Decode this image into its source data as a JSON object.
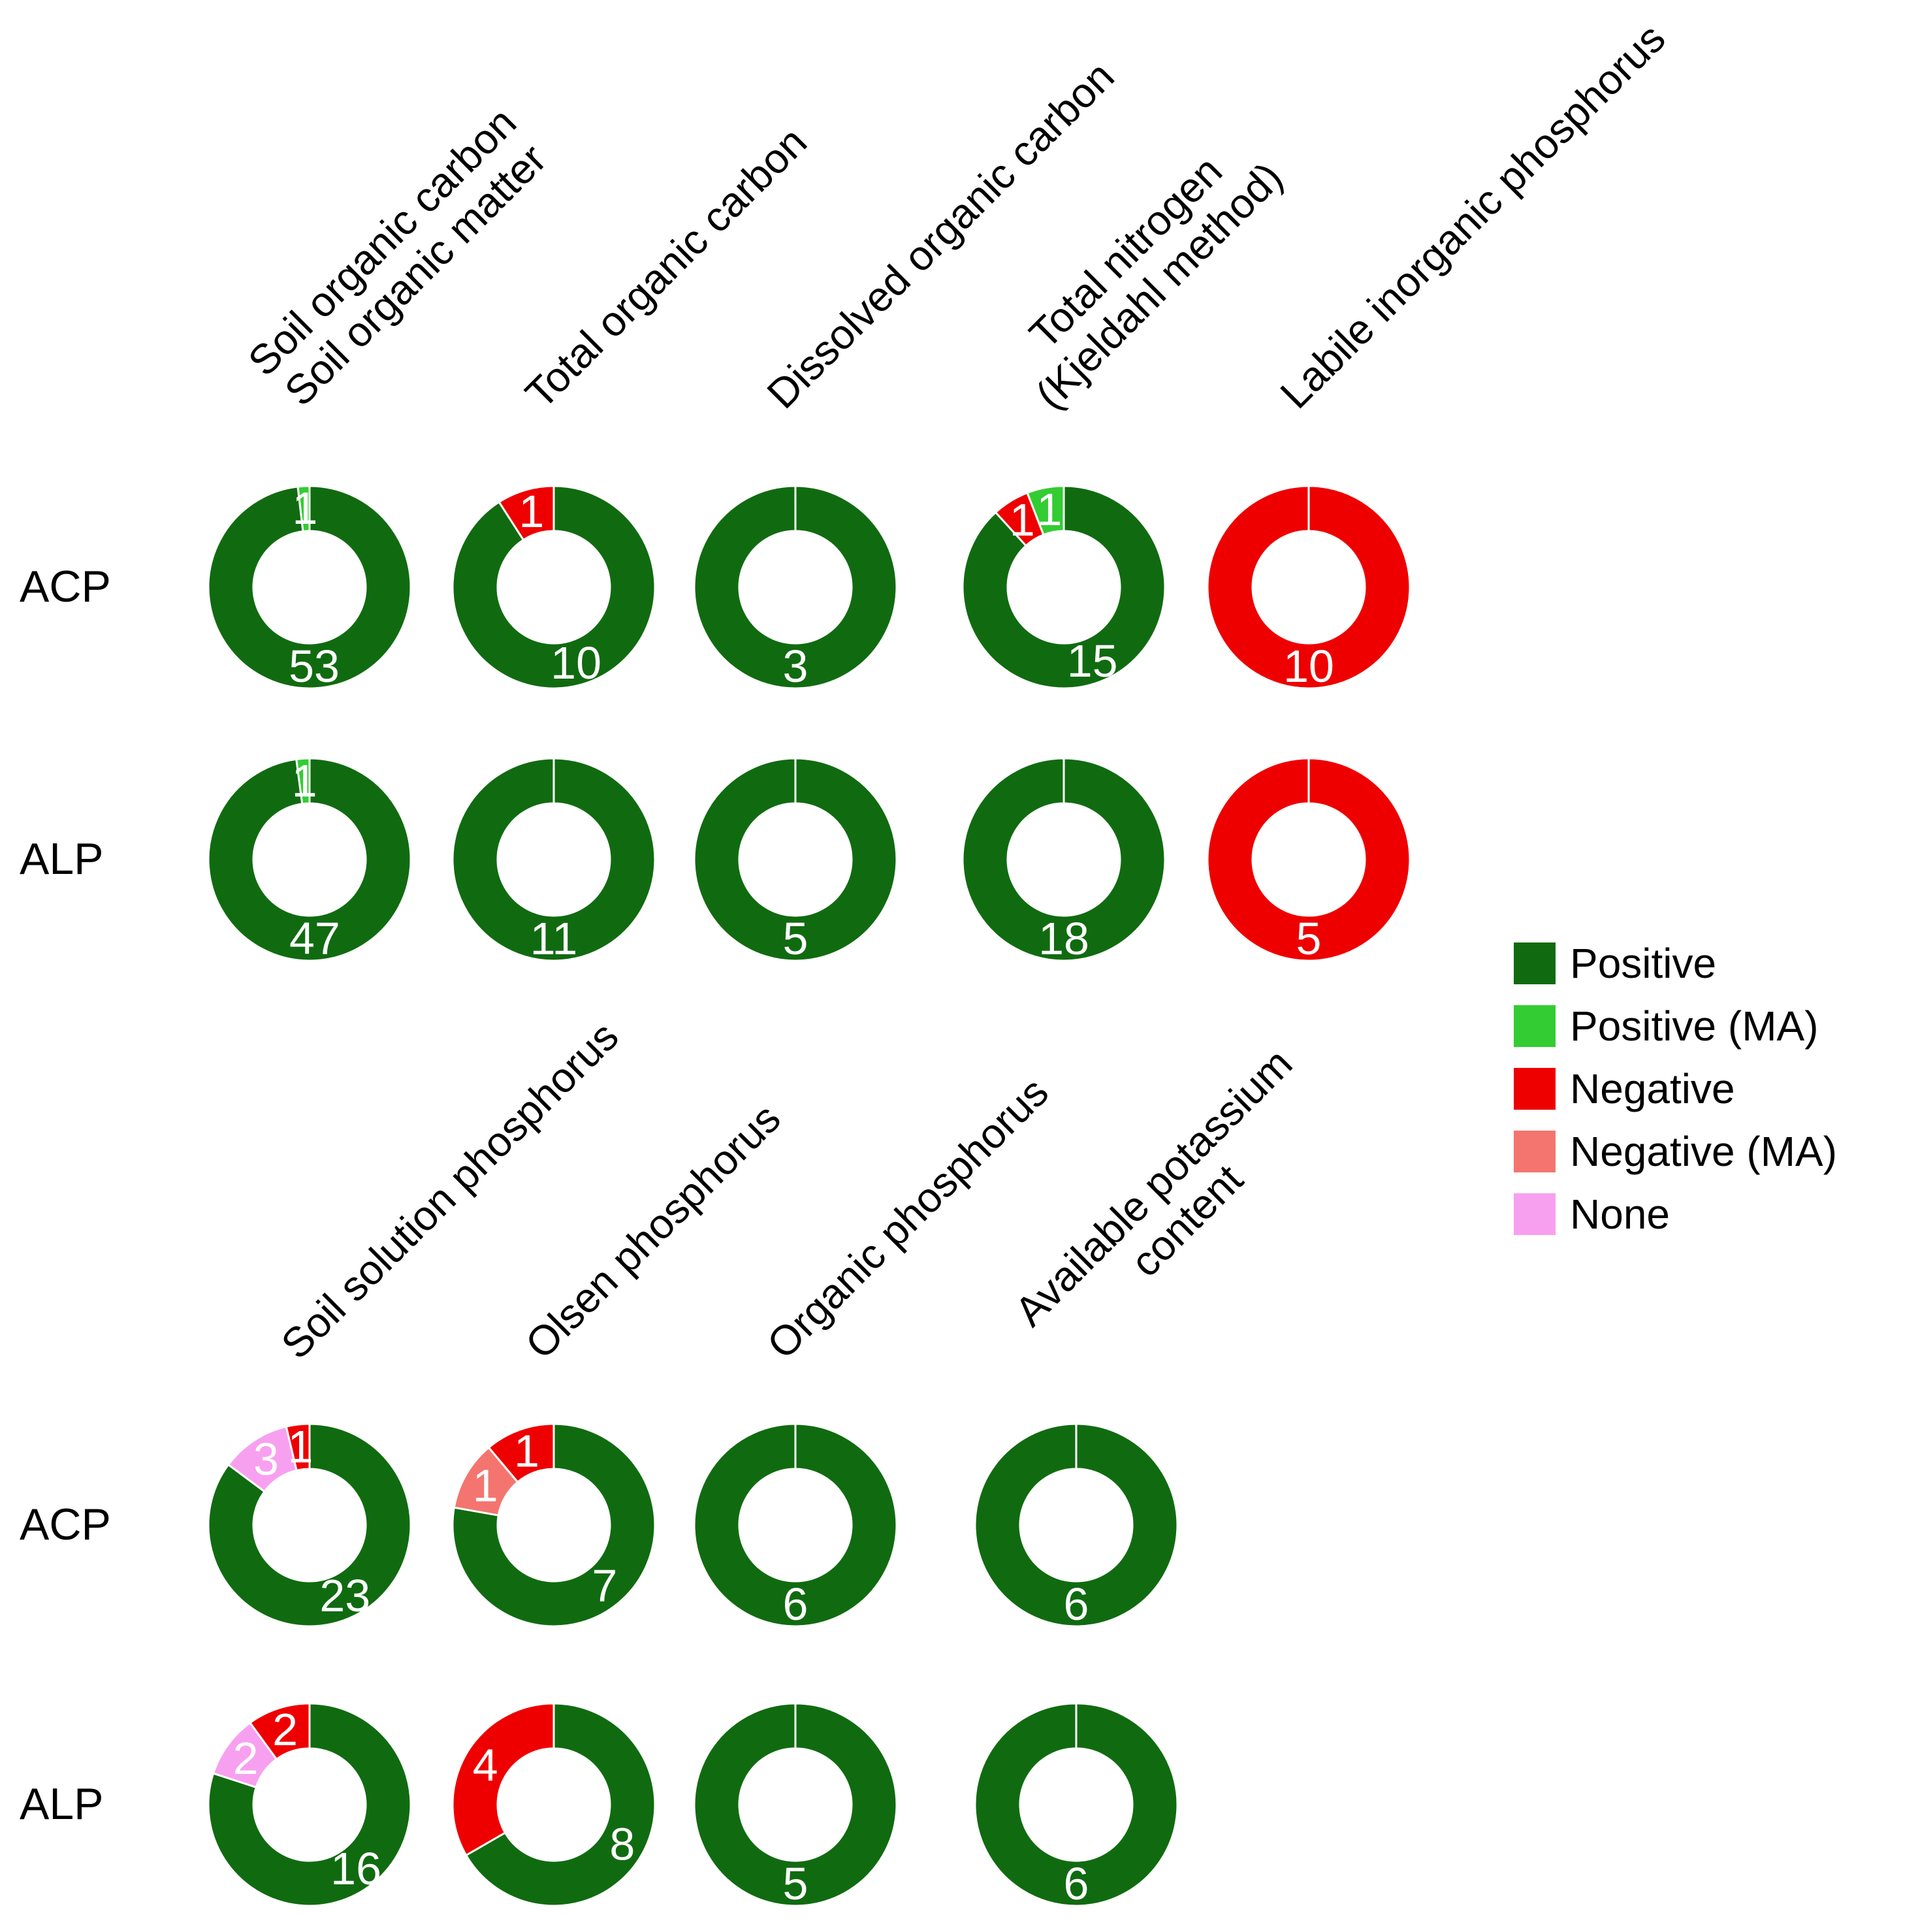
{
  "figure": {
    "colors": {
      "positive": "#106b10",
      "positive_ma": "#33cc33",
      "negative": "#ee0000",
      "negative_ma": "#f4756f",
      "none": "#f8a0f0"
    },
    "legend": {
      "items": [
        {
          "key": "positive",
          "label": "Positive"
        },
        {
          "key": "positive_ma",
          "label": "Positive (MA)"
        },
        {
          "key": "negative",
          "label": "Negative"
        },
        {
          "key": "negative_ma",
          "label": "Negative (MA)"
        },
        {
          "key": "none",
          "label": "None"
        }
      ]
    }
  },
  "chart_data": {
    "type": "pie",
    "subtype": "donut-grid",
    "legend_position": "right",
    "groups": [
      {
        "name": "carbon-and-nitrogen-indicators",
        "columns": [
          {
            "label": "Soil organic carbon\nSoil organic matter"
          },
          {
            "label": "Total organic carbon"
          },
          {
            "label": "Dissolved organic carbon"
          },
          {
            "label": "Total nitrogen\n(Kjeldahl method)"
          },
          {
            "label": "Labile inorganic phosphorus"
          }
        ],
        "rows": [
          {
            "label": "ACP",
            "donuts": [
              {
                "segments": [
                  {
                    "key": "positive",
                    "value": 53
                  },
                  {
                    "key": "positive_ma",
                    "value": 1
                  }
                ]
              },
              {
                "segments": [
                  {
                    "key": "positive",
                    "value": 10
                  },
                  {
                    "key": "negative",
                    "value": 1
                  }
                ]
              },
              {
                "segments": [
                  {
                    "key": "positive",
                    "value": 3
                  }
                ]
              },
              {
                "segments": [
                  {
                    "key": "positive",
                    "value": 15
                  },
                  {
                    "key": "negative",
                    "value": 1
                  },
                  {
                    "key": "positive_ma",
                    "value": 1
                  }
                ]
              },
              {
                "segments": [
                  {
                    "key": "negative",
                    "value": 10
                  }
                ]
              }
            ]
          },
          {
            "label": "ALP",
            "donuts": [
              {
                "segments": [
                  {
                    "key": "positive",
                    "value": 47
                  },
                  {
                    "key": "positive_ma",
                    "value": 1
                  }
                ]
              },
              {
                "segments": [
                  {
                    "key": "positive",
                    "value": 11
                  }
                ]
              },
              {
                "segments": [
                  {
                    "key": "positive",
                    "value": 5
                  }
                ]
              },
              {
                "segments": [
                  {
                    "key": "positive",
                    "value": 18
                  }
                ]
              },
              {
                "segments": [
                  {
                    "key": "negative",
                    "value": 5
                  }
                ]
              }
            ]
          }
        ]
      },
      {
        "name": "phosphorus-and-potassium-indicators",
        "columns": [
          {
            "label": "Soil solution phosphorus"
          },
          {
            "label": "Olsen phosphorus"
          },
          {
            "label": "Organic phosphorus"
          },
          {
            "label": "Available potassium\ncontent"
          }
        ],
        "rows": [
          {
            "label": "ACP",
            "donuts": [
              {
                "segments": [
                  {
                    "key": "positive",
                    "value": 23
                  },
                  {
                    "key": "none",
                    "value": 3
                  },
                  {
                    "key": "negative",
                    "value": 1
                  }
                ]
              },
              {
                "segments": [
                  {
                    "key": "positive",
                    "value": 7
                  },
                  {
                    "key": "negative_ma",
                    "value": 1
                  },
                  {
                    "key": "negative",
                    "value": 1
                  }
                ]
              },
              {
                "segments": [
                  {
                    "key": "positive",
                    "value": 6
                  }
                ]
              },
              {
                "segments": [
                  {
                    "key": "positive",
                    "value": 6
                  }
                ]
              }
            ]
          },
          {
            "label": "ALP",
            "donuts": [
              {
                "segments": [
                  {
                    "key": "positive",
                    "value": 16
                  },
                  {
                    "key": "none",
                    "value": 2
                  },
                  {
                    "key": "negative",
                    "value": 2
                  }
                ]
              },
              {
                "segments": [
                  {
                    "key": "positive",
                    "value": 8
                  },
                  {
                    "key": "negative",
                    "value": 4
                  }
                ]
              },
              {
                "segments": [
                  {
                    "key": "positive",
                    "value": 5
                  }
                ]
              },
              {
                "segments": [
                  {
                    "key": "positive",
                    "value": 6
                  }
                ]
              }
            ]
          }
        ]
      }
    ]
  }
}
